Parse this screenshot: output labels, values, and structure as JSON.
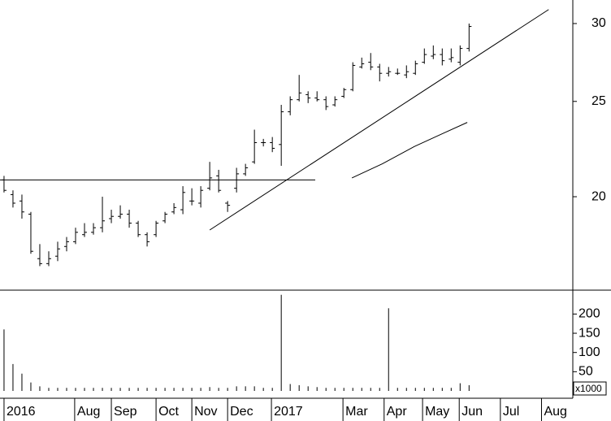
{
  "chart_data": [
    {
      "type": "ohlc",
      "open": [
        20.8,
        20.1,
        19.8,
        19.2,
        17.3,
        17.1,
        17.4,
        17.8,
        18.0,
        18.3,
        18.4,
        18.6,
        19.0,
        19.1,
        19.2,
        18.8,
        18.3,
        18.3,
        18.9,
        19.3,
        19.4,
        19.8,
        19.7,
        20.4,
        21.0,
        19.7,
        20.4,
        21.1,
        21.7,
        22.7,
        22.7,
        22.6,
        24.4,
        25.1,
        25.4,
        25.2,
        25.1,
        24.8,
        25.3,
        25.7,
        27.1,
        27.4,
        27.1,
        26.7,
        26.7,
        26.6,
        26.7,
        27.4,
        27.8,
        27.9,
        27.6,
        27.4,
        28.3
      ],
      "high": [
        21.0,
        20.3,
        20.1,
        19.3,
        17.9,
        17.6,
        18.0,
        18.2,
        18.6,
        18.8,
        18.8,
        20.0,
        19.4,
        19.6,
        19.4,
        18.9,
        18.4,
        18.9,
        19.3,
        19.7,
        20.5,
        20.4,
        20.5,
        21.7,
        21.3,
        19.8,
        21.4,
        21.6,
        23.4,
        22.9,
        23.0,
        24.8,
        25.3,
        26.6,
        25.6,
        25.6,
        25.3,
        25.3,
        25.8,
        27.4,
        27.7,
        28.0,
        27.3,
        27.1,
        27.0,
        27.2,
        27.5,
        28.3,
        28.5,
        28.3,
        28.3,
        28.5,
        30.0
      ],
      "low": [
        20.2,
        19.5,
        19.0,
        17.5,
        17.0,
        17.0,
        17.2,
        17.6,
        17.9,
        18.2,
        18.3,
        18.4,
        18.8,
        19.0,
        18.6,
        18.2,
        17.8,
        18.2,
        18.8,
        19.2,
        19.2,
        19.6,
        19.5,
        20.3,
        20.2,
        19.3,
        20.2,
        21.0,
        21.6,
        22.5,
        22.2,
        21.5,
        24.2,
        25.0,
        24.9,
        25.0,
        24.5,
        24.7,
        25.2,
        25.6,
        27.0,
        26.9,
        26.2,
        26.5,
        26.6,
        26.4,
        26.6,
        27.3,
        27.6,
        27.2,
        27.4,
        27.2,
        28.1
      ],
      "close": [
        20.3,
        19.7,
        19.3,
        17.6,
        17.1,
        17.3,
        17.7,
        18.0,
        18.4,
        18.4,
        18.6,
        18.9,
        19.1,
        19.2,
        18.8,
        18.3,
        18.0,
        18.8,
        19.2,
        19.5,
        20.2,
        19.8,
        20.3,
        20.9,
        20.3,
        19.6,
        21.1,
        21.4,
        22.7,
        22.7,
        22.4,
        24.4,
        25.1,
        25.5,
        25.2,
        25.1,
        24.7,
        25.1,
        25.7,
        27.2,
        27.3,
        27.1,
        26.7,
        26.8,
        26.7,
        26.8,
        27.3,
        27.9,
        27.9,
        27.5,
        27.7,
        28.3,
        29.8
      ],
      "xlim": [
        -0.45,
        63.6
      ],
      "xticks": [
        {
          "value": 0,
          "label": "2016"
        },
        {
          "value": 7.9,
          "label": "Aug"
        },
        {
          "value": 12,
          "label": "Sep"
        },
        {
          "value": 17,
          "label": "Oct"
        },
        {
          "value": 21,
          "label": "Nov"
        },
        {
          "value": 25,
          "label": "Dec"
        },
        {
          "value": 29.9,
          "label": "2017"
        },
        {
          "value": 37.9,
          "label": "Mar"
        },
        {
          "value": 42.5,
          "label": "Apr"
        },
        {
          "value": 46.8,
          "label": "May"
        },
        {
          "value": 50.9,
          "label": "Jun"
        },
        {
          "value": 55.5,
          "label": "Jul"
        },
        {
          "value": 60.1,
          "label": "Aug"
        }
      ],
      "ylim": [
        16.07,
        31.7
      ],
      "yticks": [
        20,
        25,
        30
      ],
      "log_scale": true,
      "lines": [
        {
          "x": [
            -0.45,
            34.8
          ],
          "y": [
            20.8,
            20.8
          ]
        },
        {
          "x": [
            23,
            60.9
          ],
          "y": [
            18.5,
            31.0
          ]
        },
        {
          "x": [
            38.9,
            42.3,
            45.9,
            49.1,
            51.8
          ],
          "y": [
            20.9,
            21.6,
            22.5,
            23.2,
            23.8
          ]
        }
      ]
    },
    {
      "type": "bar",
      "values": [
        160,
        70,
        45,
        22,
        12,
        8,
        8,
        8,
        8,
        8,
        8,
        8,
        8,
        8,
        8,
        8,
        8,
        8,
        8,
        8,
        8,
        8,
        8,
        10,
        8,
        8,
        12,
        12,
        12,
        8,
        8,
        250,
        18,
        15,
        12,
        10,
        8,
        8,
        8,
        8,
        8,
        8,
        8,
        215,
        8,
        8,
        8,
        8,
        8,
        8,
        8,
        20,
        15
      ],
      "ylim": [
        -19,
        260
      ],
      "yticks": [
        50,
        100,
        150,
        200
      ],
      "unit_label": "x1000"
    }
  ]
}
